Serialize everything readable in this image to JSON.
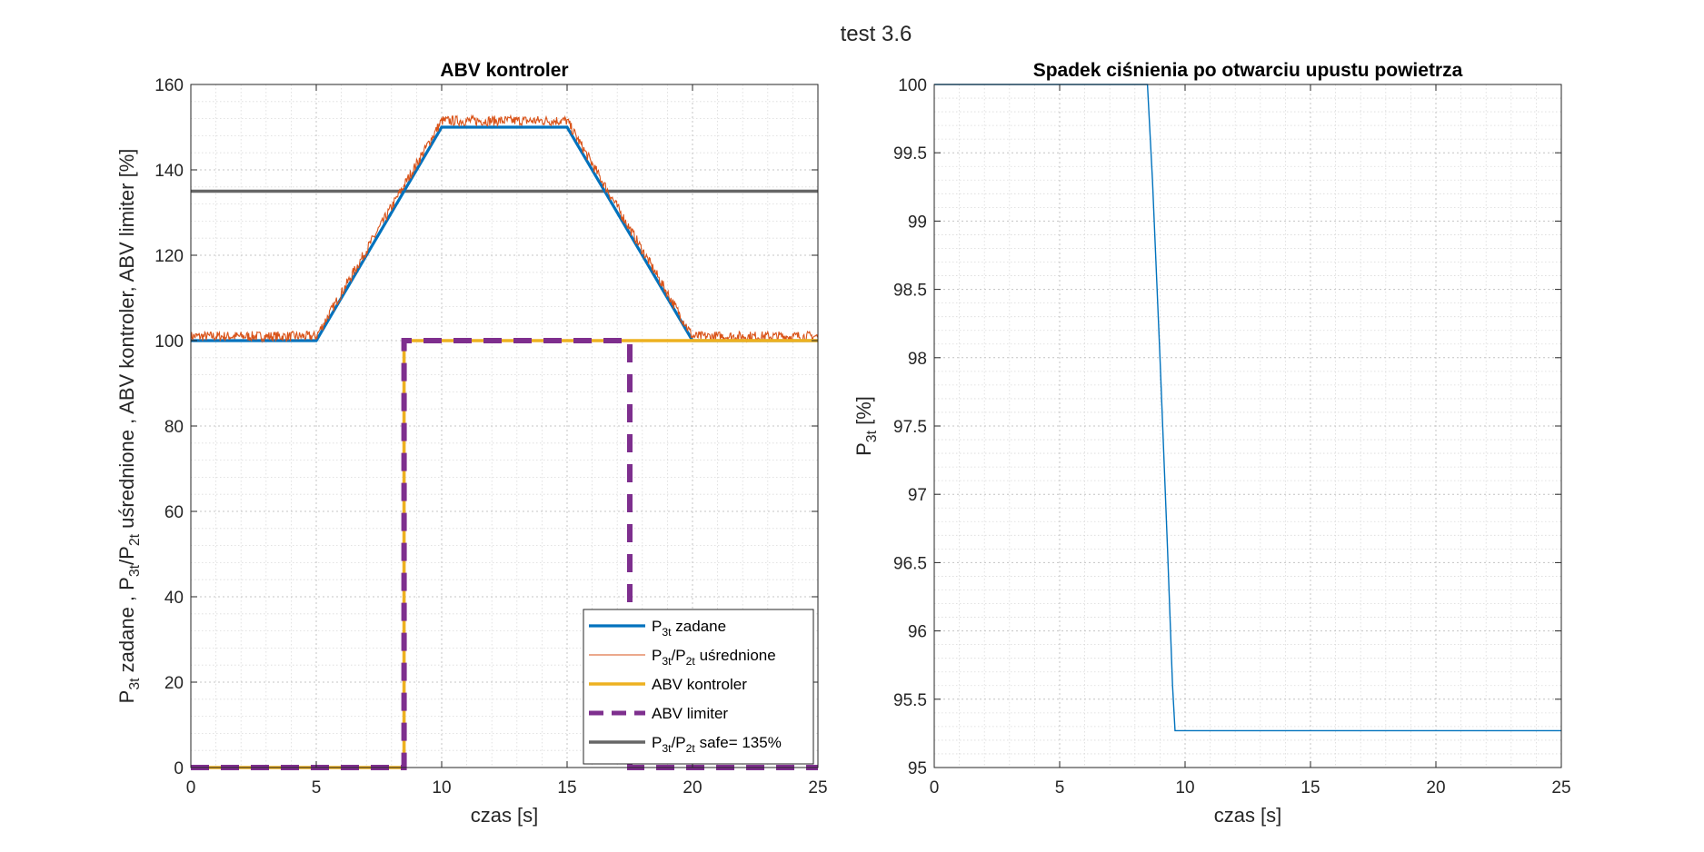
{
  "figure_title": "test 3.6",
  "colors": {
    "zadane": "#0072BD",
    "usrednione": "#D95319",
    "kontroler": "#EDB120",
    "limiter": "#7E2F8E",
    "safe": "#666666",
    "line2": "#0072BD"
  },
  "chart_data": [
    {
      "type": "line",
      "title": "ABV kontroler",
      "xlabel": "czas [s]",
      "ylabel": {
        "parts": [
          {
            "t": "P",
            "sub": false
          },
          {
            "t": "3t",
            "sub": true
          },
          {
            "t": " zadane , P",
            "sub": false
          },
          {
            "t": "3t",
            "sub": true
          },
          {
            "t": "/P",
            "sub": false
          },
          {
            "t": "2t",
            "sub": true
          },
          {
            "t": " uśrednione , ABV kontroler, ABV limiter [%]",
            "sub": false
          }
        ]
      },
      "xlim": [
        0,
        25
      ],
      "ylim": [
        0,
        160
      ],
      "xticks": [
        "0",
        "5",
        "10",
        "15",
        "20",
        "25"
      ],
      "yticks": [
        "0",
        "20",
        "40",
        "60",
        "80",
        "100",
        "120",
        "140",
        "160"
      ],
      "grid": true,
      "minor_grid": true,
      "legend_position": "bottom-right",
      "series": [
        {
          "key": "zadane",
          "legend": [
            {
              "t": "P",
              "sub": false
            },
            {
              "t": "3t",
              "sub": true
            },
            {
              "t": " zadane",
              "sub": false
            }
          ],
          "x": [
            0,
            5,
            10,
            15,
            20,
            25
          ],
          "y": [
            100,
            100,
            150,
            150,
            100,
            100
          ]
        },
        {
          "key": "usrednione",
          "legend": [
            {
              "t": "P",
              "sub": false
            },
            {
              "t": "3t",
              "sub": true
            },
            {
              "t": "/P",
              "sub": false
            },
            {
              "t": "2t",
              "sub": true
            },
            {
              "t": " uśrednione",
              "sub": false
            }
          ],
          "x": [
            0,
            5,
            10,
            15,
            20,
            25
          ],
          "y": [
            101,
            101,
            151.5,
            151.5,
            101,
            101
          ],
          "noise_amplitude": 1.2
        },
        {
          "key": "kontroler",
          "legend": [
            {
              "t": "ABV kontroler",
              "sub": false
            }
          ],
          "x": [
            0,
            8.5,
            8.5,
            25
          ],
          "y": [
            0,
            0,
            100,
            100
          ]
        },
        {
          "key": "limiter",
          "legend": [
            {
              "t": "ABV limiter",
              "sub": false
            }
          ],
          "x": [
            0,
            8.5,
            8.5,
            17.5,
            17.5,
            25
          ],
          "y": [
            0,
            0,
            100,
            100,
            0,
            0
          ]
        },
        {
          "key": "safe",
          "legend": [
            {
              "t": "P",
              "sub": false
            },
            {
              "t": "3t",
              "sub": true
            },
            {
              "t": "/P",
              "sub": false
            },
            {
              "t": "2t",
              "sub": true
            },
            {
              "t": " safe= 135%",
              "sub": false
            }
          ],
          "x": [
            0,
            25
          ],
          "y": [
            135,
            135
          ]
        }
      ]
    },
    {
      "type": "line",
      "title": "Spadek ciśnienia po otwarciu upustu powietrza",
      "xlabel": "czas [s]",
      "ylabel": {
        "parts": [
          {
            "t": "P",
            "sub": false
          },
          {
            "t": "3t",
            "sub": true
          },
          {
            "t": " [%]",
            "sub": false
          }
        ]
      },
      "xlim": [
        0,
        25
      ],
      "ylim": [
        95,
        100
      ],
      "xticks": [
        "0",
        "5",
        "10",
        "15",
        "20",
        "25"
      ],
      "yticks": [
        "95",
        "95.5",
        "96",
        "96.5",
        "97",
        "97.5",
        "98",
        "98.5",
        "99",
        "99.5",
        "100"
      ],
      "grid": true,
      "minor_grid": true,
      "series": [
        {
          "key": "line2",
          "x": [
            0,
            8.5,
            8.7,
            9.0,
            9.3,
            9.5,
            9.6,
            25
          ],
          "y": [
            100,
            100,
            99.3,
            98.0,
            96.6,
            95.6,
            95.27,
            95.27
          ]
        }
      ]
    }
  ]
}
